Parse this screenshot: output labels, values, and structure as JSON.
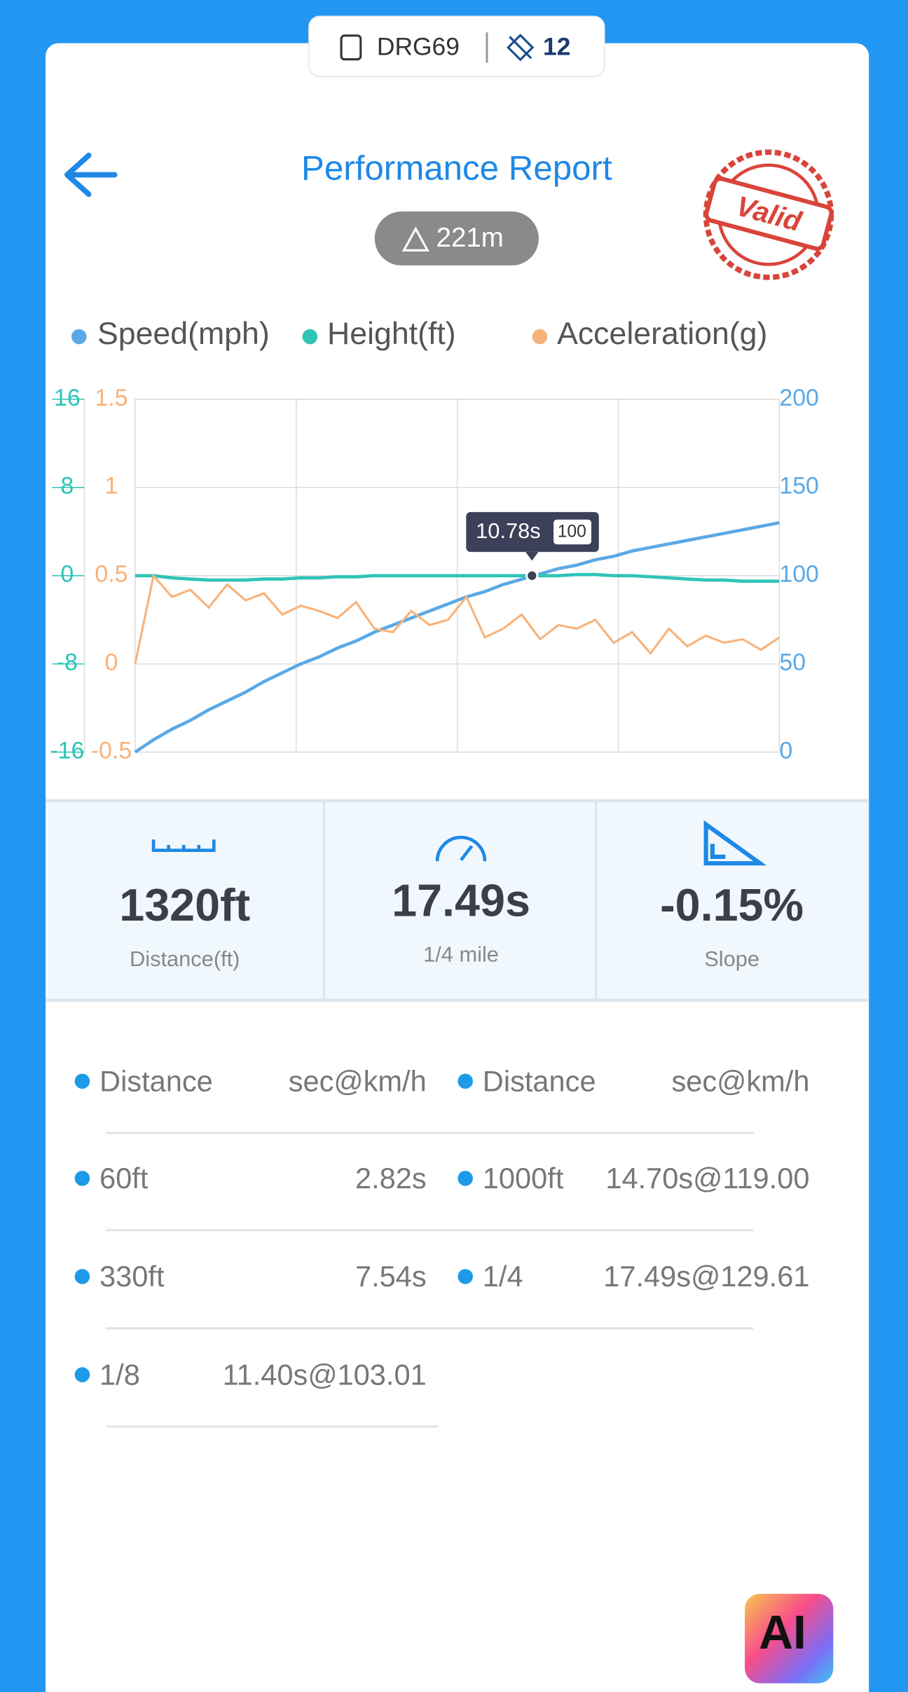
{
  "header": {
    "plate": "DRG69",
    "count": 12
  },
  "title": "Performance Report",
  "altitude": "221m",
  "stamp": "Valid",
  "chart_data": {
    "type": "line",
    "xlim": [
      0,
      17.5
    ],
    "x": [
      0,
      0.5,
      1,
      1.5,
      2,
      2.5,
      3,
      3.5,
      4,
      4.5,
      5,
      5.5,
      6,
      6.5,
      7,
      7.5,
      8,
      8.5,
      9,
      9.5,
      10,
      10.5,
      11,
      11.5,
      12,
      12.5,
      13,
      13.5,
      14,
      14.5,
      15,
      15.5,
      16,
      16.5,
      17,
      17.5
    ],
    "ylim": [
      -16,
      16
    ],
    "yticks": [
      -16,
      -8,
      0,
      8,
      16
    ],
    "y2lim": [
      0,
      200
    ],
    "y2ticks": [
      0,
      50,
      100,
      150,
      200
    ],
    "y3lim": [
      -0.5,
      1.5
    ],
    "y3ticks": [
      -0.5,
      0,
      0.5,
      1,
      1.5
    ],
    "grid": true,
    "series": [
      {
        "name": "Speed(mph)",
        "color": "#5aa9e6",
        "axis": "y2",
        "values": [
          0,
          7,
          13,
          18,
          24,
          29,
          34,
          40,
          45,
          50,
          54,
          59,
          63,
          68,
          72,
          76,
          80,
          84,
          88,
          91,
          95,
          98,
          101,
          104,
          106,
          109,
          111,
          114,
          116,
          118,
          120,
          122,
          124,
          126,
          128,
          130
        ]
      },
      {
        "name": "Height(ft)",
        "color": "#2ec4b6",
        "axis": "y",
        "values": [
          0,
          0,
          -0.2,
          -0.3,
          -0.4,
          -0.4,
          -0.4,
          -0.3,
          -0.3,
          -0.2,
          -0.2,
          -0.1,
          -0.1,
          0,
          0,
          0,
          0,
          0,
          0,
          0,
          0,
          0,
          0,
          0,
          0.1,
          0.1,
          0,
          0,
          -0.1,
          -0.2,
          -0.3,
          -0.4,
          -0.4,
          -0.5,
          -0.5,
          -0.5
        ]
      },
      {
        "name": "Acceleration(g)",
        "color": "#f7b27a",
        "axis": "y3",
        "values": [
          0,
          0.5,
          0.38,
          0.42,
          0.32,
          0.45,
          0.36,
          0.4,
          0.28,
          0.33,
          0.3,
          0.26,
          0.35,
          0.2,
          0.18,
          0.3,
          0.22,
          0.25,
          0.38,
          0.15,
          0.2,
          0.28,
          0.14,
          0.22,
          0.2,
          0.25,
          0.12,
          0.18,
          0.06,
          0.2,
          0.1,
          0.16,
          0.12,
          0.14,
          0.08,
          0.15
        ]
      }
    ],
    "tooltip": {
      "x": {
        "value": 10.78,
        "label": "10.78s"
      },
      "y": 100
    }
  },
  "stats": [
    {
      "value": "1320ft",
      "label": "Distance(ft)"
    },
    {
      "value": "17.49s",
      "label": "1/4 mile"
    },
    {
      "value": "-0.15%",
      "label": "Slope"
    }
  ],
  "table": {
    "header": [
      "Distance",
      "sec@km/h",
      "Distance",
      "sec@km/h"
    ],
    "rows": [
      [
        "60ft",
        "2.82s",
        "1000ft",
        "14.70s@119.00"
      ],
      [
        "330ft",
        "7.54s",
        "1/4",
        "17.49s@129.61"
      ],
      [
        "1/8",
        "11.40s@103.01"
      ]
    ]
  },
  "ai_button": "AI"
}
